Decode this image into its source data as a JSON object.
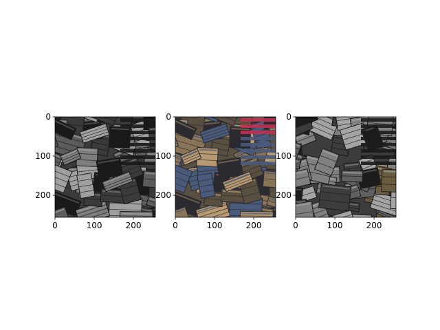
{
  "figure": {
    "background": "#ffffff"
  },
  "chart_data": [
    {
      "type": "image",
      "description_of_content": "grayscale",
      "xlim": [
        0,
        256
      ],
      "ylim": [
        256,
        0
      ],
      "xticks": [
        0,
        100,
        200
      ],
      "yticks": [
        0,
        100,
        200
      ],
      "xtick_labels": [
        "0",
        "100",
        "200"
      ],
      "ytick_labels": [
        "0",
        "100",
        "200"
      ],
      "palette": [
        "#1a1a1a",
        "#3a3a3a",
        "#5c5c5c",
        "#7d7d7d",
        "#a0a0a0",
        "#c4c4c4"
      ]
    },
    {
      "type": "image",
      "description_of_content": "color",
      "xlim": [
        0,
        256
      ],
      "ylim": [
        256,
        0
      ],
      "xticks": [
        0,
        100,
        200
      ],
      "yticks": [
        0,
        100,
        200
      ],
      "xtick_labels": [
        "0",
        "100",
        "200"
      ],
      "ytick_labels": [
        "0",
        "100",
        "200"
      ],
      "palette": [
        "#2a2a30",
        "#5a5042",
        "#8a7458",
        "#b89a72",
        "#4a5a7a",
        "#c03050"
      ]
    },
    {
      "type": "image",
      "description_of_content": "grayscale with partial color",
      "xlim": [
        0,
        256
      ],
      "ylim": [
        256,
        0
      ],
      "xticks": [
        0,
        100,
        200
      ],
      "yticks": [
        0,
        100,
        200
      ],
      "xtick_labels": [
        "0",
        "100",
        "200"
      ],
      "ytick_labels": [
        "0",
        "100",
        "200"
      ],
      "palette": [
        "#1c1c1c",
        "#3c3c3c",
        "#606060",
        "#808080",
        "#a4a4a4",
        "#6a5c40"
      ]
    }
  ]
}
